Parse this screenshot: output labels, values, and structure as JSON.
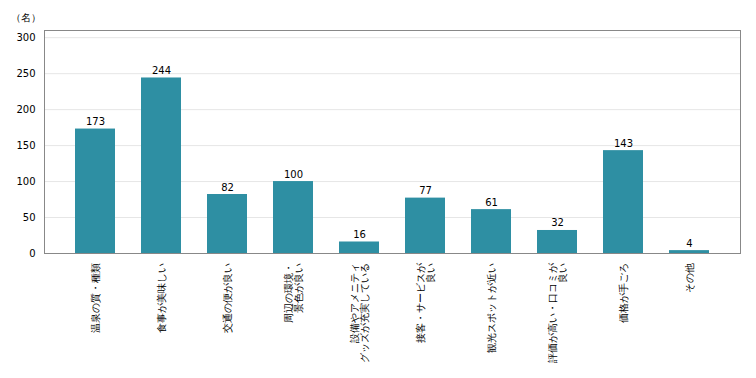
{
  "chart_data": {
    "type": "bar",
    "categories": [
      "温泉の質・種類",
      "食事が美味しい",
      "交通の便が良い",
      "周辺の環境・\n景色が良い",
      "設備やアメニティ\nグッズが充実している",
      "接客・サービスが\n良い",
      "観光スポットが近い",
      "評価が高い・口コミが\n良い",
      "価格が手ごろ",
      "その他"
    ],
    "values": [
      173,
      244,
      82,
      100,
      16,
      77,
      61,
      32,
      143,
      4
    ],
    "color": "#2e8fa3",
    "ylabel": "（名）",
    "ylim": [
      0,
      310
    ],
    "yticks": [
      0,
      50,
      100,
      150,
      200,
      250,
      300
    ],
    "grid": true,
    "data_labels": true
  }
}
